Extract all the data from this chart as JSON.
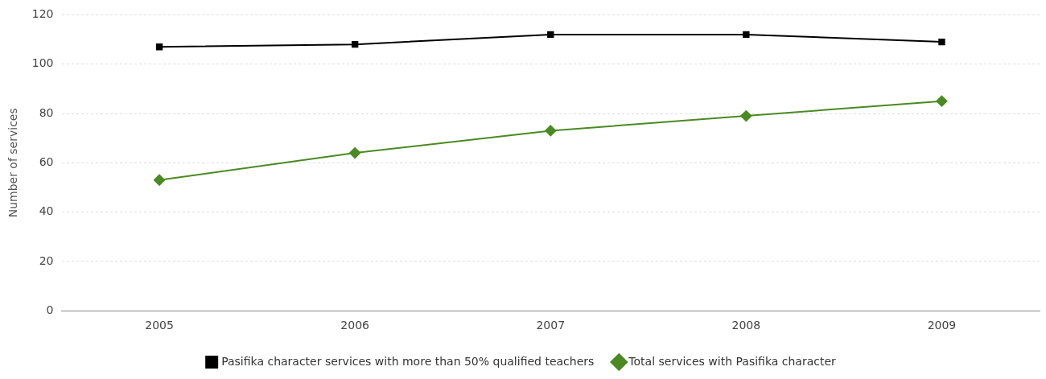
{
  "chart_data": {
    "type": "line",
    "ylabel": "Number of services",
    "categories": [
      "2005",
      "2006",
      "2007",
      "2008",
      "2009"
    ],
    "series": [
      {
        "name": "Pasifika character services with more than 50% qualified teachers",
        "color": "#000000",
        "marker": "square",
        "values": [
          107,
          108,
          112,
          112,
          109
        ]
      },
      {
        "name": "Total services with Pasifika character",
        "color": "#4a8a22",
        "marker": "diamond",
        "values": [
          53,
          64,
          73,
          79,
          85
        ]
      }
    ],
    "ylim": [
      0,
      120
    ],
    "yticks": [
      0,
      20,
      40,
      60,
      80,
      100,
      120
    ],
    "grid": "y",
    "legend": "bottom",
    "line_style": "solid"
  }
}
